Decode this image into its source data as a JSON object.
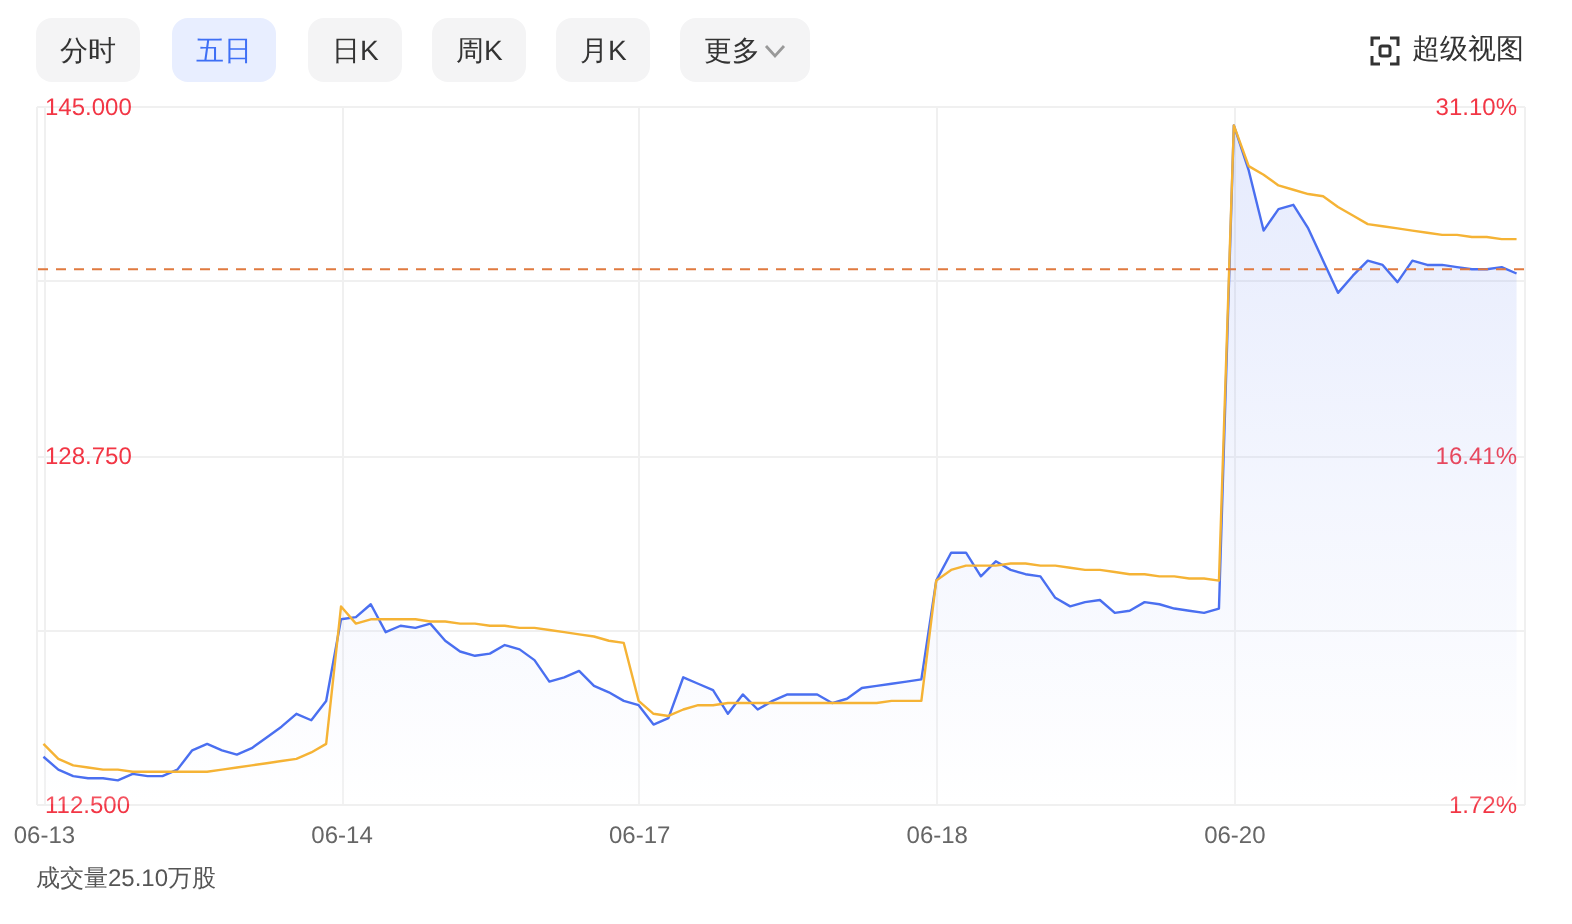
{
  "chart_data": {
    "type": "line",
    "annotations": [
      "分时",
      "五日",
      "日K",
      "周K",
      "月K",
      "更多",
      "超级视图",
      "成交量25.10万股"
    ],
    "categories": [
      "06-13",
      null,
      null,
      null,
      null,
      null,
      null,
      null,
      null,
      null,
      null,
      null,
      null,
      null,
      null,
      null,
      null,
      null,
      null,
      null,
      "06-14",
      null,
      null,
      null,
      null,
      null,
      null,
      null,
      null,
      null,
      null,
      null,
      null,
      null,
      null,
      null,
      null,
      null,
      null,
      null,
      "06-17",
      null,
      null,
      null,
      null,
      null,
      null,
      null,
      null,
      null,
      null,
      null,
      null,
      null,
      null,
      null,
      null,
      null,
      null,
      null,
      "06-18",
      null,
      null,
      null,
      null,
      null,
      null,
      null,
      null,
      null,
      null,
      null,
      null,
      null,
      null,
      null,
      null,
      null,
      null,
      null,
      "06-20",
      null,
      null,
      null,
      null,
      null,
      null,
      null,
      null,
      null,
      null,
      null,
      null,
      null,
      null,
      null,
      null,
      null,
      null,
      null
    ],
    "ylim": [
      112.5,
      145
    ],
    "yticks": [
      {
        "value": 112.5,
        "label": "112.500"
      },
      {
        "value": 120.625,
        "label": null
      },
      {
        "value": 128.75,
        "label": "128.750"
      },
      {
        "value": 136.875,
        "label": null
      },
      {
        "value": 145,
        "label": "145.000"
      }
    ],
    "y2lim": [
      1.72,
      31.1
    ],
    "y2ticks": [
      {
        "value": 1.72,
        "label": "1.72%"
      },
      {
        "value": 16.41,
        "label": "16.41%"
      },
      {
        "value": 31.1,
        "label": "31.10%"
      }
    ],
    "grid": true,
    "ref_lines": [
      {
        "axis": "y",
        "value": 137.4,
        "color": "#e07a3f",
        "line_style": "dashed"
      }
    ],
    "series": [
      {
        "type": "area",
        "color": "#4a6ff0",
        "values": [
          114.7,
          114.1,
          113.8,
          113.7,
          113.7,
          113.6,
          113.9,
          113.8,
          113.8,
          114.1,
          115.0,
          115.3,
          115.0,
          114.8,
          115.1,
          115.6,
          116.1,
          116.7,
          116.4,
          117.3,
          121.1,
          121.2,
          121.8,
          120.5,
          120.8,
          120.7,
          120.9,
          120.1,
          119.6,
          119.4,
          119.5,
          119.9,
          119.7,
          119.2,
          118.2,
          118.4,
          118.7,
          118.0,
          117.7,
          117.3,
          117.1,
          116.2,
          116.5,
          118.4,
          118.1,
          117.8,
          116.7,
          117.6,
          116.9,
          117.3,
          117.6,
          117.6,
          117.6,
          117.2,
          117.4,
          117.9,
          118.0,
          118.1,
          118.2,
          118.3,
          122.9,
          124.2,
          124.2,
          123.1,
          123.8,
          123.4,
          123.2,
          123.1,
          122.1,
          121.7,
          121.9,
          122.0,
          121.4,
          121.5,
          121.9,
          121.8,
          121.6,
          121.5,
          121.4,
          121.6,
          144.1,
          142.0,
          139.2,
          140.2,
          140.4,
          139.3,
          137.8,
          136.3,
          137.1,
          137.8,
          137.6,
          136.8,
          137.8,
          137.6,
          137.6,
          137.5,
          137.4,
          137.4,
          137.5,
          137.2
        ]
      },
      {
        "type": "line",
        "color": "#f5b335",
        "values": [
          115.3,
          114.6,
          114.3,
          114.2,
          114.1,
          114.1,
          114.0,
          114.0,
          114.0,
          114.0,
          114.0,
          114.0,
          114.1,
          114.2,
          114.3,
          114.4,
          114.5,
          114.6,
          114.9,
          115.3,
          121.7,
          120.9,
          121.1,
          121.1,
          121.1,
          121.1,
          121.0,
          121.0,
          120.9,
          120.9,
          120.8,
          120.8,
          120.7,
          120.7,
          120.6,
          120.5,
          120.4,
          120.3,
          120.1,
          120.0,
          117.3,
          116.7,
          116.6,
          116.9,
          117.1,
          117.1,
          117.2,
          117.2,
          117.2,
          117.2,
          117.2,
          117.2,
          117.2,
          117.2,
          117.2,
          117.2,
          117.2,
          117.3,
          117.3,
          117.3,
          122.9,
          123.4,
          123.6,
          123.6,
          123.6,
          123.7,
          123.7,
          123.6,
          123.6,
          123.5,
          123.4,
          123.4,
          123.3,
          123.2,
          123.2,
          123.1,
          123.1,
          123.0,
          123.0,
          122.9,
          144.1,
          142.2,
          141.8,
          141.3,
          141.1,
          140.9,
          140.8,
          140.3,
          139.9,
          139.5,
          139.4,
          139.3,
          139.2,
          139.1,
          139.0,
          139.0,
          138.9,
          138.9,
          138.8,
          138.8
        ]
      }
    ]
  }
}
